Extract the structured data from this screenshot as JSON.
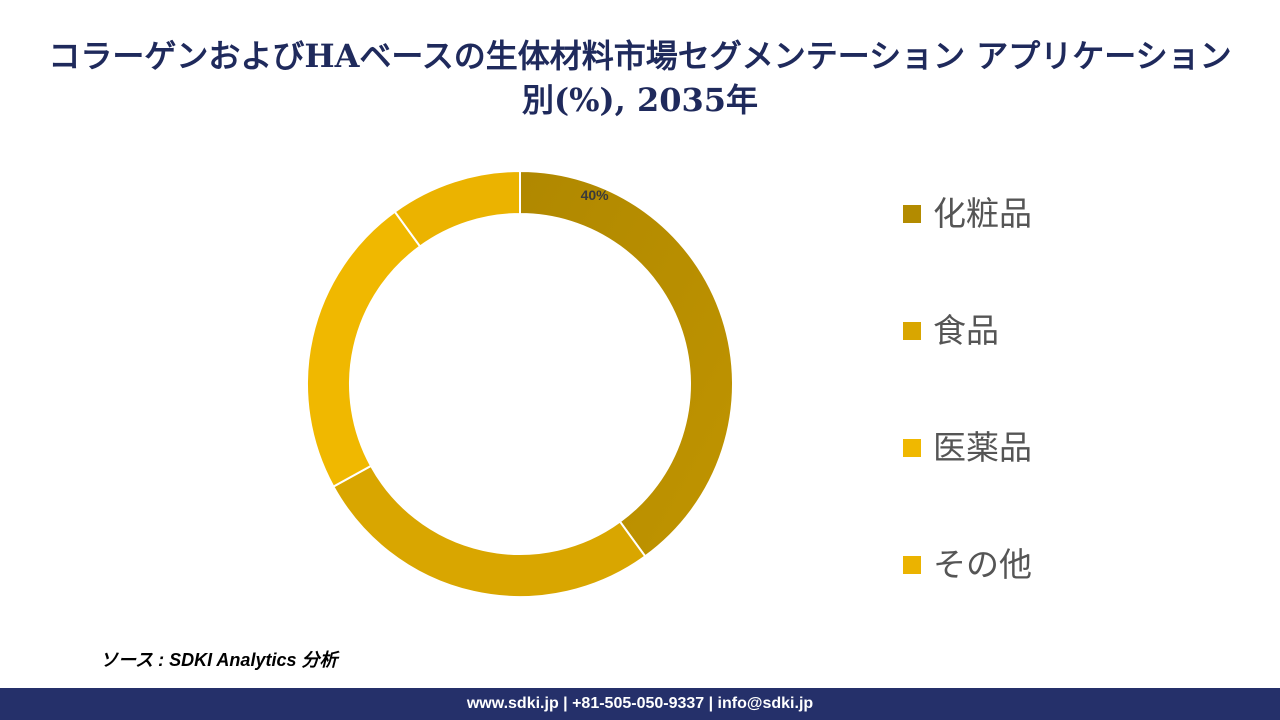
{
  "chart_data": {
    "type": "pie",
    "title": "コラーゲンおよびHAベースの生体材料市場セグメンテーション アプリケーション別(%), 2035年",
    "categories": [
      "化粧品",
      "食品",
      "医薬品",
      "その他"
    ],
    "values": [
      40,
      27,
      23,
      10
    ],
    "data_labels": [
      "40%",
      "",
      "",
      ""
    ],
    "legend_position": "right",
    "colors": [
      "#b38b00",
      "#d9a600",
      "#f0b800",
      "#ebb300"
    ]
  },
  "source": "ソース : SDKI Analytics 分析",
  "footer": "www.sdki.jp | +81-505-050-9337 | info@sdki.jp"
}
